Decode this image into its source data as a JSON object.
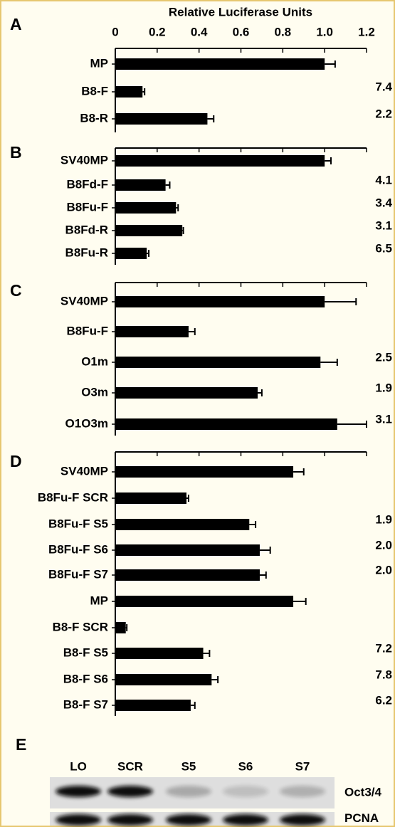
{
  "chart_data": [
    {
      "type": "bar",
      "panel": "A",
      "xlabel": "Relative Luciferase Units",
      "xlim": [
        0,
        1.2
      ],
      "xticks": [
        0,
        0.2,
        0.4,
        0.6,
        0.8,
        {
          "value": 1,
          "label": "1.0"
        },
        1.2
      ],
      "categories": [
        "MP",
        "B8-F",
        "B8-R"
      ],
      "values": [
        1.0,
        0.13,
        0.44
      ],
      "errors": [
        0.05,
        0.01,
        0.03
      ],
      "fold_labels": [
        null,
        "7.4",
        "2.2"
      ],
      "color": "#000000"
    },
    {
      "type": "bar",
      "panel": "B",
      "categories": [
        "SV40MP",
        "B8Fd-F",
        "B8Fu-F",
        "B8Fd-R",
        "B8Fu-R"
      ],
      "values": [
        1.0,
        0.24,
        0.29,
        0.32,
        0.15
      ],
      "errors": [
        0.03,
        0.02,
        0.01,
        0.005,
        0.01
      ],
      "fold_labels": [
        null,
        "4.1",
        "3.4",
        "3.1",
        "6.5"
      ],
      "color": "#000000"
    },
    {
      "type": "bar",
      "panel": "C",
      "categories": [
        "SV40MP",
        "B8Fu-F",
        "O1m",
        "O3m",
        "O1O3m"
      ],
      "values": [
        1.0,
        0.35,
        0.98,
        0.68,
        1.06
      ],
      "errors": [
        0.15,
        0.03,
        0.08,
        0.02,
        0.14
      ],
      "fold_labels": [
        null,
        null,
        "2.5",
        "1.9",
        "3.1"
      ],
      "color": "#000000"
    },
    {
      "type": "bar",
      "panel": "D",
      "categories": [
        "SV40MP",
        "B8Fu-F SCR",
        "B8Fu-F S5",
        "B8Fu-F S6",
        "B8Fu-F S7",
        "MP",
        "B8-F SCR",
        "B8-F S5",
        "B8-F S6",
        "B8-F S7"
      ],
      "values": [
        0.85,
        0.34,
        0.64,
        0.69,
        0.69,
        0.85,
        0.05,
        0.42,
        0.46,
        0.36
      ],
      "errors": [
        0.05,
        0.01,
        0.03,
        0.05,
        0.03,
        0.06,
        0.005,
        0.03,
        0.03,
        0.02
      ],
      "fold_labels": [
        null,
        null,
        "1.9",
        "2.0",
        "2.0",
        null,
        null,
        "7.2",
        "7.8",
        "6.2"
      ],
      "color": "#000000"
    }
  ],
  "blot": {
    "panel": "E",
    "lanes": [
      "LO",
      "SCR",
      "S5",
      "S6",
      "S7"
    ],
    "rows": [
      "Oct3/4",
      "PCNA"
    ]
  }
}
